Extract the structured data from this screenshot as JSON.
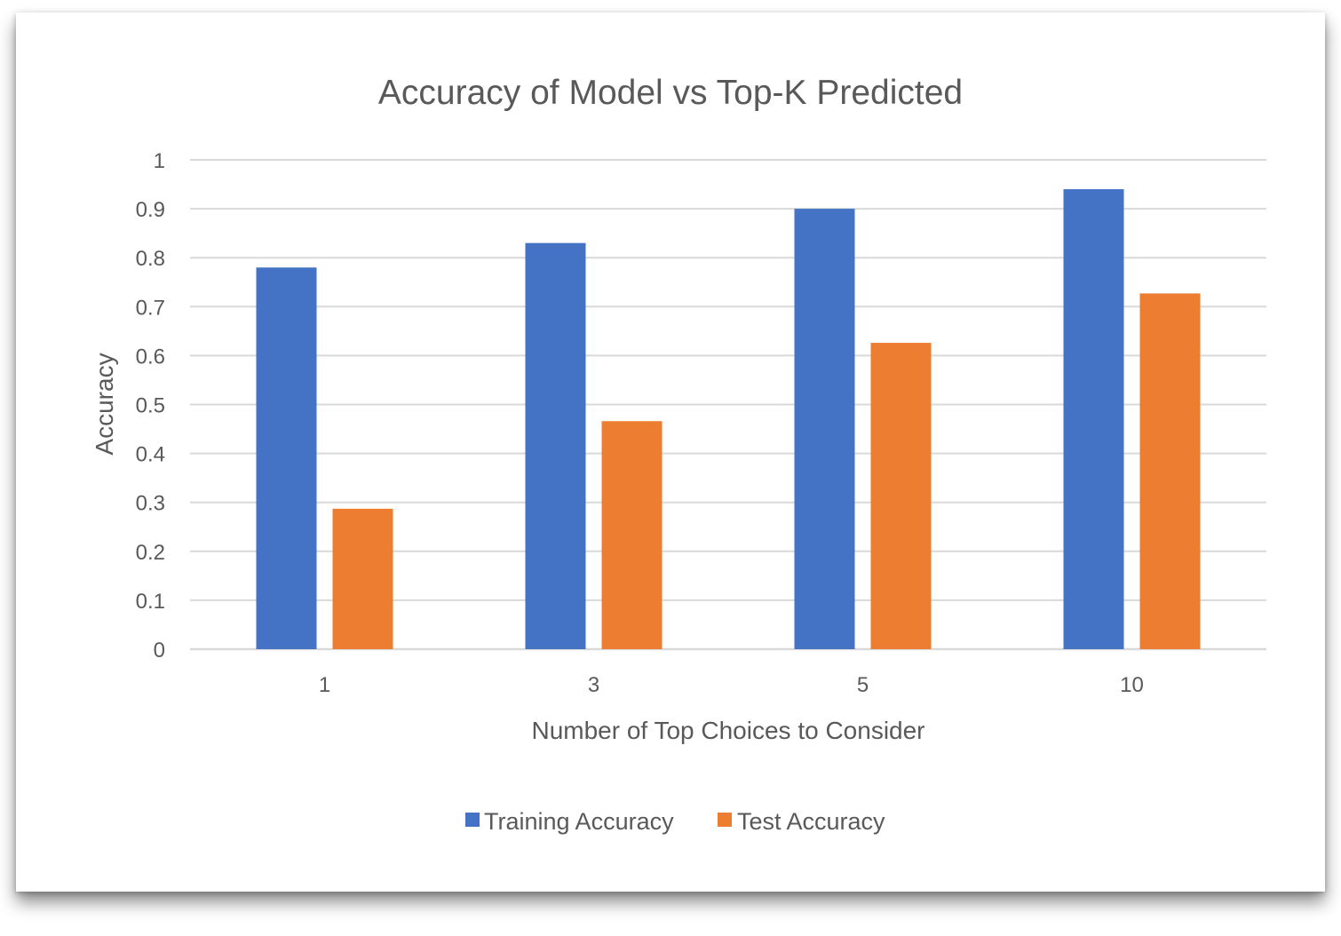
{
  "chart_data": {
    "type": "bar",
    "title": "Accuracy of Model vs Top-K Predicted",
    "xlabel": "Number of Top Choices to Consider",
    "ylabel": "Accuracy",
    "categories": [
      "1",
      "3",
      "5",
      "10"
    ],
    "series": [
      {
        "name": "Training Accuracy",
        "color": "#4472c4",
        "values": [
          0.78,
          0.83,
          0.9,
          0.94
        ]
      },
      {
        "name": "Test Accuracy",
        "color": "#ed7d31",
        "values": [
          0.287,
          0.466,
          0.626,
          0.727
        ]
      }
    ],
    "ylim": [
      0,
      1
    ],
    "yticks": [
      "0",
      "0.1",
      "0.2",
      "0.3",
      "0.4",
      "0.5",
      "0.6",
      "0.7",
      "0.8",
      "0.9",
      "1"
    ],
    "grid": true,
    "legend_position": "bottom"
  }
}
